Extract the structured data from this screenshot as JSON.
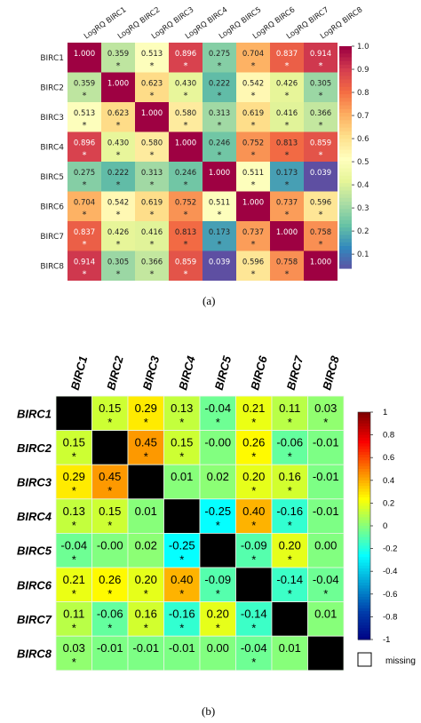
{
  "figure": {
    "label_a": "(a)",
    "label_b": "(b)"
  },
  "chart_data": [
    {
      "type": "heatmap",
      "title": "",
      "row_labels": [
        "BIRC1",
        "BIRC2",
        "BIRC3",
        "BIRC4",
        "BIRC5",
        "BIRC6",
        "BIRC7",
        "BIRC8"
      ],
      "col_labels": [
        "LogRQ BIRC1",
        "LogRQ BIRC2",
        "LogRQ BIRC3",
        "LogRQ BIRC4",
        "LogRQ BIRC5",
        "LogRQ BIRC6",
        "LogRQ BIRC7",
        "LogRQ BIRC8"
      ],
      "values": [
        [
          1.0,
          0.359,
          0.513,
          0.896,
          0.275,
          0.704,
          0.837,
          0.914
        ],
        [
          0.359,
          1.0,
          0.623,
          0.43,
          0.222,
          0.542,
          0.426,
          0.305
        ],
        [
          0.513,
          0.623,
          1.0,
          0.58,
          0.313,
          0.619,
          0.416,
          0.366
        ],
        [
          0.896,
          0.43,
          0.58,
          1.0,
          0.246,
          0.752,
          0.813,
          0.859
        ],
        [
          0.275,
          0.222,
          0.313,
          0.246,
          1.0,
          0.511,
          0.173,
          0.039
        ],
        [
          0.704,
          0.542,
          0.619,
          0.752,
          0.511,
          1.0,
          0.737,
          0.596
        ],
        [
          0.837,
          0.426,
          0.416,
          0.813,
          0.173,
          0.737,
          1.0,
          0.758
        ],
        [
          0.914,
          0.305,
          0.366,
          0.859,
          0.039,
          0.596,
          0.758,
          1.0
        ]
      ],
      "cell_labels": [
        [
          "1.000",
          "0.359",
          "0.513",
          "0.896",
          "0.275",
          "0.704",
          "0.837",
          "0.914"
        ],
        [
          "0.359",
          "1.000",
          "0.623",
          "0.430",
          "0.222",
          "0.542",
          "0.426",
          "0.305"
        ],
        [
          "0.513",
          "0.623",
          "1.000",
          "0.580",
          "0.313",
          "0.619",
          "0.416",
          "0.366"
        ],
        [
          "0.896",
          "0.430",
          "0.580",
          "1.000",
          "0.246",
          "0.752",
          "0.813",
          "0.859"
        ],
        [
          "0.275",
          "0.222",
          "0.313",
          "0.246",
          "1.000",
          "0.511",
          "0.173",
          "0.039"
        ],
        [
          "0.704",
          "0.542",
          "0.619",
          "0.752",
          "0.511",
          "1.000",
          "0.737",
          "0.596"
        ],
        [
          "0.837",
          "0.426",
          "0.416",
          "0.813",
          "0.173",
          "0.737",
          "1.000",
          "0.758"
        ],
        [
          "0.914",
          "0.305",
          "0.366",
          "0.859",
          "0.039",
          "0.596",
          "0.758",
          "1.000"
        ]
      ],
      "stars": [
        [
          false,
          true,
          true,
          true,
          true,
          true,
          true,
          true
        ],
        [
          true,
          false,
          true,
          true,
          true,
          true,
          true,
          true
        ],
        [
          true,
          true,
          false,
          true,
          true,
          true,
          true,
          true
        ],
        [
          true,
          true,
          true,
          false,
          true,
          true,
          true,
          true
        ],
        [
          true,
          true,
          true,
          true,
          false,
          true,
          true,
          false
        ],
        [
          true,
          true,
          true,
          true,
          true,
          false,
          true,
          true
        ],
        [
          true,
          true,
          true,
          true,
          true,
          true,
          false,
          true
        ],
        [
          true,
          true,
          true,
          true,
          false,
          true,
          true,
          false
        ]
      ],
      "star_symbol": "*",
      "colorbar": {
        "min": 0.039,
        "max": 1.0,
        "ticks": [
          1.0,
          0.9,
          0.8,
          0.7,
          0.6,
          0.5,
          0.4,
          0.3,
          0.2,
          0.1
        ],
        "tick_labels": [
          "1.0",
          "0.9",
          "0.8",
          "0.7",
          "0.6",
          "0.5",
          "0.4",
          "0.3",
          "0.2",
          "0.1"
        ],
        "colormap": "Spectral_r"
      },
      "grid": false,
      "legend": "right"
    },
    {
      "type": "heatmap",
      "title": "",
      "row_labels": [
        "BIRC1",
        "BIRC2",
        "BIRC3",
        "BIRC4",
        "BIRC5",
        "BIRC6",
        "BIRC7",
        "BIRC8"
      ],
      "col_labels": [
        "BIRC1",
        "BIRC2",
        "BIRC3",
        "BIRC4",
        "BIRC5",
        "BIRC6",
        "BIRC7",
        "BIRC8"
      ],
      "values": [
        [
          null,
          0.15,
          0.29,
          0.13,
          -0.04,
          0.21,
          0.11,
          0.03
        ],
        [
          0.15,
          null,
          0.45,
          0.15,
          -0.0,
          0.26,
          -0.06,
          -0.01
        ],
        [
          0.29,
          0.45,
          null,
          0.01,
          0.02,
          0.2,
          0.16,
          -0.01
        ],
        [
          0.13,
          0.15,
          0.01,
          null,
          -0.25,
          0.4,
          -0.16,
          -0.01
        ],
        [
          -0.04,
          -0.0,
          0.02,
          -0.25,
          null,
          -0.09,
          0.2,
          0.0
        ],
        [
          0.21,
          0.26,
          0.2,
          0.4,
          -0.09,
          null,
          -0.14,
          -0.04
        ],
        [
          0.11,
          -0.06,
          0.16,
          -0.16,
          0.2,
          -0.14,
          null,
          0.01
        ],
        [
          0.03,
          -0.01,
          -0.01,
          -0.01,
          0.0,
          -0.04,
          0.01,
          null
        ]
      ],
      "cell_labels": [
        [
          "",
          "0.15",
          "0.29",
          "0.13",
          "-0.04",
          "0.21",
          "0.11",
          "0.03"
        ],
        [
          "0.15",
          "",
          "0.45",
          "0.15",
          "-0.00",
          "0.26",
          "-0.06",
          "-0.01"
        ],
        [
          "0.29",
          "0.45",
          "",
          "0.01",
          "0.02",
          "0.20",
          "0.16",
          "-0.01"
        ],
        [
          "0.13",
          "0.15",
          "0.01",
          "",
          "-0.25",
          "0.40",
          "-0.16",
          "-0.01"
        ],
        [
          "-0.04",
          "-0.00",
          "0.02",
          "-0.25",
          "",
          "-0.09",
          "0.20",
          "0.00"
        ],
        [
          "0.21",
          "0.26",
          "0.20",
          "0.40",
          "-0.09",
          "",
          "-0.14",
          "-0.04"
        ],
        [
          "0.11",
          "-0.06",
          "0.16",
          "-0.16",
          "0.20",
          "-0.14",
          "",
          "0.01"
        ],
        [
          "0.03",
          "-0.01",
          "-0.01",
          "-0.01",
          "0.00",
          "-0.04",
          "0.01",
          ""
        ]
      ],
      "stars": [
        [
          false,
          true,
          true,
          true,
          true,
          true,
          true,
          true
        ],
        [
          true,
          false,
          true,
          true,
          false,
          true,
          true,
          false
        ],
        [
          true,
          true,
          false,
          false,
          false,
          true,
          true,
          false
        ],
        [
          true,
          true,
          false,
          false,
          true,
          true,
          true,
          false
        ],
        [
          true,
          false,
          false,
          true,
          false,
          true,
          true,
          false
        ],
        [
          true,
          true,
          true,
          true,
          true,
          false,
          true,
          true
        ],
        [
          true,
          true,
          true,
          true,
          true,
          true,
          false,
          false
        ],
        [
          true,
          false,
          false,
          false,
          false,
          true,
          false,
          false
        ]
      ],
      "star_symbol": "*",
      "diagonal_color": "#000000",
      "colorbar": {
        "min": -1,
        "max": 1,
        "ticks": [
          1,
          0.8,
          0.6,
          0.4,
          0.2,
          0,
          -0.2,
          -0.4,
          -0.6,
          -0.8,
          -1
        ],
        "tick_labels": [
          "1",
          "0.8",
          "0.6",
          "0.4",
          "0.2",
          "0",
          "-0.2",
          "-0.4",
          "-0.6",
          "-0.8",
          "-1"
        ],
        "colormap": "jet"
      },
      "missing_label": "missing",
      "grid": true,
      "legend": "right"
    }
  ]
}
